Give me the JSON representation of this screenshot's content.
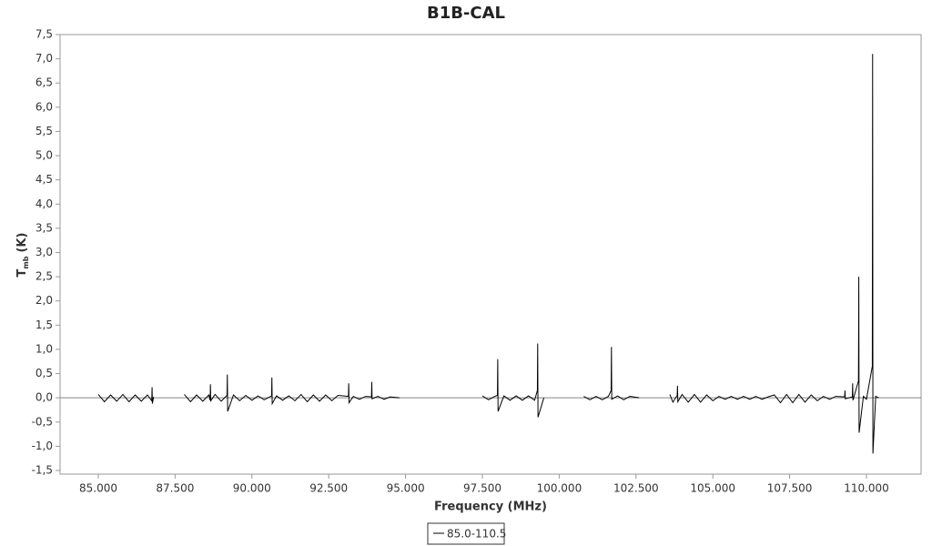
{
  "chart_data": {
    "type": "line",
    "title": "B1B-CAL",
    "x_label": "Frequency (MHz)",
    "y_label": {
      "main": "T",
      "sub": "mb",
      "unit": "(K)"
    },
    "x": [
      85000,
      85200,
      85400,
      85600,
      85800,
      86000,
      86200,
      86400,
      86600,
      86740,
      86750,
      86760,
      86800,
      87300,
      87800,
      88000,
      88200,
      88400,
      88600,
      88640,
      88650,
      88660,
      88800,
      89000,
      89190,
      89200,
      89210,
      89400,
      89600,
      89800,
      90000,
      90200,
      90400,
      90640,
      90650,
      90660,
      90800,
      91000,
      91200,
      91400,
      91600,
      91800,
      92000,
      92200,
      92400,
      92600,
      92800,
      93140,
      93150,
      93160,
      93300,
      93500,
      93700,
      93890,
      93900,
      93910,
      94100,
      94300,
      94500,
      94800,
      96000,
      97500,
      97700,
      97900,
      97990,
      98000,
      98010,
      98200,
      98400,
      98600,
      98800,
      99000,
      99200,
      99290,
      99300,
      99310,
      99500,
      100200,
      100800,
      101000,
      101200,
      101400,
      101600,
      101690,
      101700,
      101710,
      101900,
      102100,
      102300,
      102600,
      103100,
      103600,
      103700,
      103840,
      103850,
      103860,
      104000,
      104200,
      104400,
      104600,
      104800,
      105000,
      105200,
      105400,
      105600,
      105800,
      106000,
      106200,
      106400,
      106600,
      106800,
      107000,
      107200,
      107400,
      107600,
      107800,
      108000,
      108200,
      108400,
      108600,
      108800,
      109000,
      109290,
      109300,
      109310,
      109540,
      109550,
      109560,
      109740,
      109750,
      109760,
      109900,
      110000,
      110190,
      110200,
      110210,
      110300,
      110400
    ],
    "series": [
      {
        "name": "85.0-110.5",
        "color": "#000000",
        "values": [
          0.07,
          -0.08,
          0.06,
          -0.07,
          0.07,
          -0.08,
          0.06,
          -0.07,
          0.06,
          -0.06,
          0.22,
          -0.12,
          0.02,
          null,
          0.07,
          -0.08,
          0.06,
          -0.07,
          0.06,
          -0.05,
          0.28,
          -0.06,
          0.07,
          -0.07,
          0.05,
          0.48,
          -0.28,
          0.06,
          -0.06,
          0.05,
          -0.05,
          0.04,
          -0.04,
          0.04,
          0.42,
          -0.12,
          0.04,
          -0.05,
          0.04,
          -0.06,
          0.07,
          -0.08,
          0.06,
          -0.07,
          0.06,
          -0.06,
          0.05,
          0.03,
          0.3,
          -0.1,
          0.03,
          -0.03,
          0.03,
          0.02,
          0.33,
          -0.02,
          0.03,
          -0.03,
          0.02,
          0.0,
          null,
          0.04,
          -0.04,
          0.03,
          0.05,
          0.8,
          -0.28,
          0.04,
          -0.05,
          0.04,
          -0.05,
          0.04,
          -0.05,
          0.15,
          1.12,
          -0.4,
          0.0,
          null,
          0.03,
          -0.04,
          0.03,
          -0.04,
          0.03,
          0.15,
          1.05,
          -0.03,
          0.04,
          -0.04,
          0.03,
          0.0,
          null,
          0.07,
          -0.09,
          0.05,
          0.25,
          -0.08,
          0.07,
          -0.09,
          0.07,
          -0.09,
          0.06,
          -0.06,
          0.03,
          -0.03,
          0.03,
          -0.03,
          0.03,
          -0.03,
          0.03,
          -0.03,
          0.02,
          0.06,
          -0.1,
          0.07,
          -0.1,
          0.07,
          -0.09,
          0.06,
          -0.06,
          0.03,
          -0.03,
          0.03,
          0.02,
          0.15,
          -0.02,
          0.02,
          0.3,
          -0.05,
          0.35,
          2.5,
          -0.72,
          0.03,
          -0.03,
          0.65,
          7.1,
          -1.15,
          0.03,
          0.0
        ]
      }
    ],
    "xlim": [
      83756,
      111777
    ],
    "xticks": [
      {
        "value": 85000,
        "label": "85.000"
      },
      {
        "value": 87500,
        "label": "87.500"
      },
      {
        "value": 90000,
        "label": "90.000"
      },
      {
        "value": 92500,
        "label": "92.500"
      },
      {
        "value": 95000,
        "label": "95.000"
      },
      {
        "value": 97500,
        "label": "97.500"
      },
      {
        "value": 100000,
        "label": "100.000"
      },
      {
        "value": 102500,
        "label": "102.500"
      },
      {
        "value": 105000,
        "label": "105.000"
      },
      {
        "value": 107500,
        "label": "107.500"
      },
      {
        "value": 110000,
        "label": "110.000"
      }
    ],
    "ylim": [
      -1.575,
      7.5
    ],
    "yticks": [
      {
        "value": -1.5,
        "label": "-1,5"
      },
      {
        "value": -1,
        "label": "-1,0"
      },
      {
        "value": -0.5,
        "label": "-0,5"
      },
      {
        "value": 0,
        "label": "0,0"
      },
      {
        "value": 0.5,
        "label": "0,5"
      },
      {
        "value": 1,
        "label": "1,0"
      },
      {
        "value": 1.5,
        "label": "1,5"
      },
      {
        "value": 2,
        "label": "2,0"
      },
      {
        "value": 2.5,
        "label": "2,5"
      },
      {
        "value": 3,
        "label": "3,0"
      },
      {
        "value": 3.5,
        "label": "3,5"
      },
      {
        "value": 4,
        "label": "4,0"
      },
      {
        "value": 4.5,
        "label": "4,5"
      },
      {
        "value": 5,
        "label": "5,0"
      },
      {
        "value": 5.5,
        "label": "5,5"
      },
      {
        "value": 6,
        "label": "6,0"
      },
      {
        "value": 6.5,
        "label": "6,5"
      },
      {
        "value": 7,
        "label": "7,0"
      },
      {
        "value": 7.5,
        "label": "7,5"
      }
    ],
    "grid": false
  }
}
